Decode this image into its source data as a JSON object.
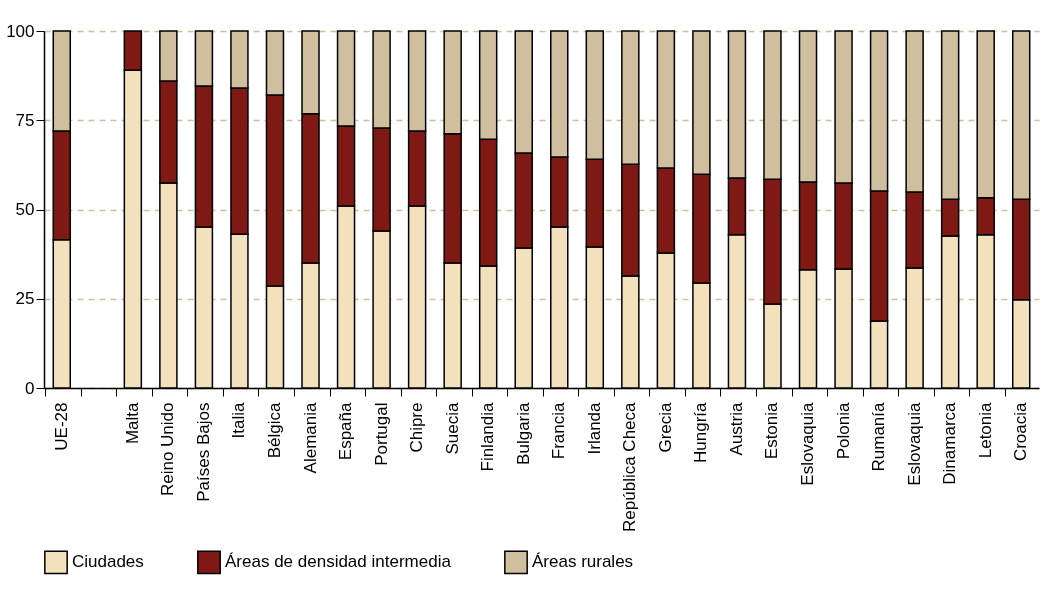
{
  "chart_data": {
    "type": "bar",
    "stacked": true,
    "categories": [
      "UE-28",
      null,
      "Malta",
      "Reino Unido",
      "Países Bajos",
      "Italia",
      "Bélgica",
      "Alemania",
      "España",
      "Portugal",
      "Chipre",
      "Suecia",
      "Finlandia",
      "Bulgaria",
      "Francia",
      "Irlanda",
      "República Checa",
      "Grecia",
      "Hungría",
      "Austria",
      "Estonia",
      "Eslovaquia",
      "Polonia",
      "Rumanía",
      "Eslovaquia",
      "Dinamarca",
      "Letonia",
      "Croacia"
    ],
    "series": [
      {
        "name": "Ciudades",
        "color": "#f3e0bd",
        "values": [
          41.5,
          null,
          89,
          57.4,
          45.1,
          43.1,
          28.6,
          35,
          51,
          44,
          51,
          35,
          34.2,
          39.2,
          45.1,
          39.5,
          31.4,
          37.8,
          29.4,
          42.9,
          23.5,
          33.1,
          33.3,
          18.8,
          33.6,
          42.6,
          42.9,
          24.7
        ]
      },
      {
        "name": "Áreas de densidad intermedia",
        "color": "#7f1914",
        "values": [
          30.5,
          null,
          11,
          28.6,
          39.5,
          40.9,
          53.5,
          41.8,
          22.4,
          28.8,
          21,
          36.2,
          35.5,
          26.6,
          19.6,
          24.6,
          31.3,
          23.8,
          30.5,
          15.9,
          35,
          24.6,
          24.1,
          36.4,
          21.3,
          10.3,
          10.4,
          28.2
        ]
      },
      {
        "name": "Áreas rurales",
        "color": "#cfbf9e",
        "values": [
          28,
          null,
          null,
          14,
          15.4,
          16,
          17.9,
          23.2,
          26.6,
          27.2,
          28,
          28.8,
          30.3,
          34.2,
          35.3,
          35.9,
          37.3,
          38.4,
          40.1,
          41.2,
          41.5,
          42.3,
          42.6,
          44.8,
          45.1,
          47.1,
          46.7,
          47.1
        ]
      }
    ],
    "ylim": [
      0,
      100
    ],
    "yticks": [
      0,
      25,
      50,
      75,
      100
    ],
    "grid": "y",
    "legend": "bottom"
  }
}
